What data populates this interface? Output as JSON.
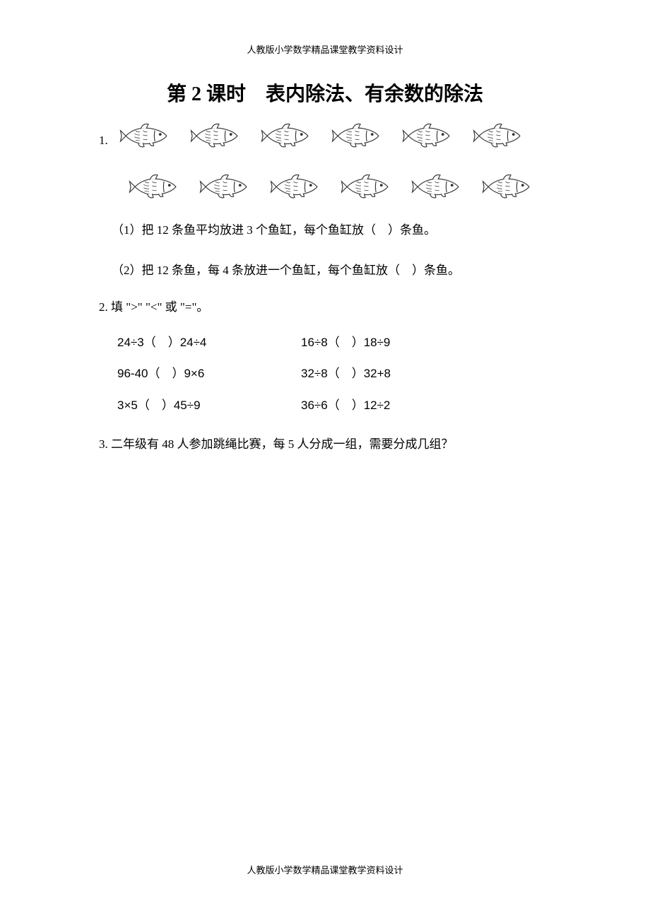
{
  "header_text": "人教版小学数学精品课堂教学资料设计",
  "title": "第 2 课时　表内除法、有余数的除法",
  "q1": {
    "label": "1.",
    "fish_count_row1": 6,
    "fish_count_row2": 6,
    "fish_color": "#ffffff",
    "fish_stroke": "#333333",
    "sub1": "（1）把 12 条鱼平均放进 3 个鱼缸，每个鱼缸放（　）条鱼。",
    "sub2": "（2）把 12 条鱼，每 4 条放进一个鱼缸，每个鱼缸放（　）条鱼。"
  },
  "q2": {
    "label": "2. 填 \">\" \"<\" 或 \"=\"。",
    "rows": [
      {
        "left": "24÷3（　）24÷4",
        "right": "16÷8（　）18÷9"
      },
      {
        "left": "96-40（　）9×6",
        "right": "32÷8（　）32+8"
      },
      {
        "left": "3×5（　）45÷9",
        "right": "36÷6（　）12÷2"
      }
    ]
  },
  "q3": {
    "text": "3. 二年级有 48 人参加跳绳比赛，每 5 人分成一组，需要分成几组？"
  },
  "footer_text": "人教版小学数学精品课堂教学资料设计",
  "colors": {
    "background": "#ffffff",
    "text": "#000000"
  },
  "fonts": {
    "body": "SimSun",
    "title": "KaiTi",
    "title_size": 28,
    "body_size": 17,
    "header_size": 13
  }
}
